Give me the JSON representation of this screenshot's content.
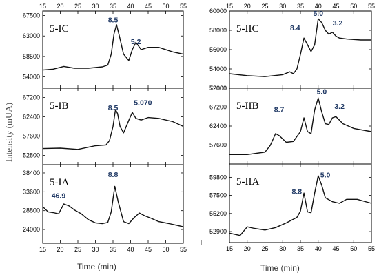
{
  "ylabel": "Intensity (mUA)",
  "ylabel_right": "I",
  "xlabel": "Time (min)",
  "chart_data": [
    {
      "type": "line",
      "panel": "5-IC",
      "column": "left",
      "row": 0,
      "label": "5-IC",
      "xlim": [
        15,
        55
      ],
      "ylim": [
        51500,
        68500
      ],
      "yticks": [
        54000,
        58500,
        63000,
        67500
      ],
      "xticks_top": [
        15,
        20,
        25,
        30,
        35,
        40,
        45,
        50,
        55
      ],
      "xticks_bottom": [],
      "annotations": [
        {
          "text": "8.5",
          "x": 35,
          "y": 66000
        },
        {
          "text": "5.2",
          "x": 41.5,
          "y": 61200
        }
      ],
      "x": [
        15,
        18,
        21,
        24,
        28,
        32,
        33.5,
        34.5,
        35.3,
        36,
        36.8,
        38,
        39.5,
        40.5,
        41.5,
        43,
        45,
        48,
        52,
        55
      ],
      "y": [
        55500,
        55700,
        56300,
        55900,
        55900,
        56200,
        56600,
        59000,
        63500,
        65500,
        63000,
        59000,
        57600,
        60000,
        61600,
        60000,
        60500,
        60500,
        59500,
        59000
      ]
    },
    {
      "type": "line",
      "panel": "5-IB",
      "column": "left",
      "row": 1,
      "label": "5-IB",
      "xlim": [
        15,
        55
      ],
      "ylim": [
        50500,
        69500
      ],
      "yticks": [
        52800,
        57600,
        62400,
        67200
      ],
      "xticks_top": [],
      "xticks_bottom": [],
      "annotations": [
        {
          "text": "8.5",
          "x": 35,
          "y": 64000
        },
        {
          "text": "5.070",
          "x": 43.5,
          "y": 65300
        }
      ],
      "x": [
        15,
        20,
        25,
        30,
        33,
        34,
        35,
        35.7,
        36.3,
        37,
        38,
        39.5,
        40.5,
        41.5,
        43,
        45,
        48,
        52,
        55
      ],
      "y": [
        54500,
        54600,
        54300,
        55200,
        55400,
        56500,
        60000,
        64200,
        63200,
        60000,
        58400,
        61500,
        63500,
        62000,
        61600,
        62200,
        62000,
        61200,
        60000
      ]
    },
    {
      "type": "line",
      "panel": "5-IA",
      "column": "left",
      "row": 2,
      "label": "5-IA",
      "xlim": [
        15,
        55
      ],
      "ylim": [
        20500,
        40500
      ],
      "yticks": [
        24000,
        28800,
        33600,
        38400
      ],
      "xticks_top": [],
      "xticks_bottom": [
        15,
        20,
        25,
        30,
        35,
        40,
        45,
        50,
        55
      ],
      "annotations": [
        {
          "text": "46.9",
          "x": 19.5,
          "y": 32000
        },
        {
          "text": "8.8",
          "x": 35,
          "y": 37300
        }
      ],
      "x": [
        15,
        16.5,
        18,
        19.5,
        21,
        22.5,
        24,
        26,
        28,
        30,
        32,
        33.5,
        34.5,
        35.5,
        36.5,
        38,
        39.5,
        41,
        42.5,
        44,
        46,
        48,
        51,
        55
      ],
      "y": [
        29800,
        28500,
        28300,
        28000,
        30500,
        30000,
        29000,
        28000,
        26500,
        25700,
        25500,
        25800,
        28500,
        35000,
        31000,
        26000,
        25500,
        27000,
        28200,
        27500,
        26800,
        26000,
        25500,
        24700
      ]
    },
    {
      "type": "line",
      "panel": "5-IIC",
      "column": "right",
      "row": 0,
      "label": "5-IIC",
      "xlim": [
        15,
        55
      ],
      "ylim": [
        52000,
        60000
      ],
      "yticks": [
        52000,
        54000,
        56000,
        58000,
        60000
      ],
      "xticks_top": [
        15,
        20,
        25,
        30,
        35,
        40,
        45,
        50,
        55
      ],
      "xticks_bottom": [],
      "annotations": [
        {
          "text": "8.4",
          "x": 33.5,
          "y": 58000
        },
        {
          "text": "5.0",
          "x": 40,
          "y": 59500
        },
        {
          "text": "3.2",
          "x": 45.5,
          "y": 58500
        }
      ],
      "x": [
        15,
        20,
        25,
        30,
        32,
        33,
        34,
        35,
        36,
        37,
        38,
        39,
        40,
        41,
        42,
        43,
        44,
        45,
        46,
        48,
        52,
        55
      ],
      "y": [
        53500,
        53300,
        53200,
        53400,
        53700,
        53500,
        54000,
        55500,
        57200,
        56500,
        55800,
        56500,
        59200,
        58800,
        58000,
        57600,
        57800,
        57400,
        57200,
        57100,
        57000,
        57000
      ]
    },
    {
      "type": "line",
      "panel": "5-IIB",
      "column": "right",
      "row": 1,
      "label": "5-IIB",
      "xlim": [
        15,
        55
      ],
      "ylim": [
        52800,
        72000
      ],
      "yticks": [
        57600,
        62400,
        67200,
        72000
      ],
      "xticks_top": [],
      "xticks_bottom": [],
      "annotations": [
        {
          "text": "8.7",
          "x": 29,
          "y": 66000
        },
        {
          "text": "5.0",
          "x": 41,
          "y": 70500
        },
        {
          "text": "3.2",
          "x": 46,
          "y": 66800
        }
      ],
      "x": [
        15,
        20,
        25,
        26.5,
        28,
        29,
        31,
        33,
        35,
        36,
        37,
        38,
        39,
        40,
        41,
        42,
        43,
        44,
        45,
        47,
        50,
        55
      ],
      "y": [
        55200,
        55200,
        55800,
        57500,
        60500,
        60000,
        58300,
        58500,
        61000,
        64500,
        61000,
        60500,
        66500,
        69500,
        66000,
        63000,
        62800,
        64500,
        64800,
        63000,
        61800,
        61000
      ]
    },
    {
      "type": "line",
      "panel": "5-IIA",
      "column": "right",
      "row": 2,
      "label": "5-IIA",
      "xlim": [
        15,
        55
      ],
      "ylim": [
        51500,
        61500
      ],
      "yticks": [
        52900,
        55200,
        57500,
        59800
      ],
      "xticks_top": [],
      "xticks_bottom": [
        15,
        20,
        25,
        30,
        35,
        40,
        45,
        50,
        55
      ],
      "annotations": [
        {
          "text": "8.8",
          "x": 34,
          "y": 57700
        },
        {
          "text": "5.0",
          "x": 42,
          "y": 59800
        }
      ],
      "x": [
        15,
        18,
        20,
        22,
        25,
        28,
        31,
        34,
        35,
        36,
        37,
        38,
        39,
        40,
        41,
        42,
        44,
        46,
        48,
        51,
        55
      ],
      "y": [
        52700,
        52400,
        53500,
        53300,
        53100,
        53400,
        54000,
        54700,
        55500,
        57800,
        55400,
        55300,
        57800,
        60000,
        58800,
        57200,
        56700,
        56500,
        57000,
        57000,
        56500
      ]
    }
  ]
}
